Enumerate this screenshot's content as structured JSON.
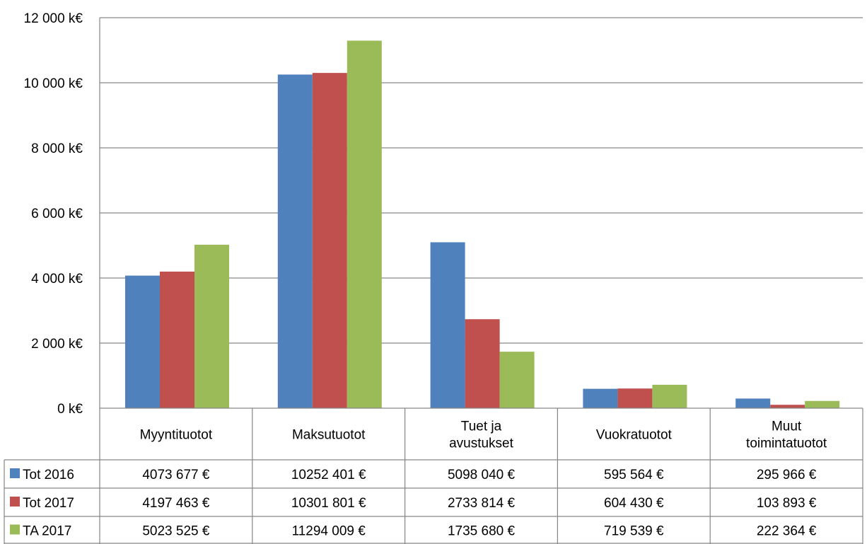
{
  "chart_data": {
    "type": "bar",
    "categories": [
      [
        "Myyntituotot"
      ],
      [
        "Maksutuotot"
      ],
      [
        "Tuet ja",
        "avustukset"
      ],
      [
        "Vuokratuotot"
      ],
      [
        "Muut",
        "toimintatuotot"
      ]
    ],
    "series": [
      {
        "name": "Tot 2016",
        "color": "#4f81bd",
        "values": [
          4073.677,
          10252.401,
          5098.04,
          595.564,
          295.966
        ],
        "labels": [
          "4073 677 €",
          "10252 401 €",
          "5098 040 €",
          "595 564 €",
          "295 966 €"
        ]
      },
      {
        "name": "Tot 2017",
        "color": "#c0504d",
        "values": [
          4197.463,
          10301.801,
          2733.814,
          604.43,
          103.893
        ],
        "labels": [
          "4197 463 €",
          "10301 801 €",
          "2733 814 €",
          "604 430 €",
          "103 893 €"
        ]
      },
      {
        "name": "TA 2017",
        "color": "#9bbb59",
        "values": [
          5023.525,
          11294.009,
          1735.68,
          719.539,
          222.364
        ],
        "labels": [
          "5023 525 €",
          "11294 009 €",
          "1735 680 €",
          "719 539 €",
          "222 364 €"
        ]
      }
    ],
    "yticks": [
      "0 k€",
      "2 000 k€",
      "4 000 k€",
      "6 000 k€",
      "8 000 k€",
      "10 000 k€",
      "12 000 k€"
    ],
    "ylim": [
      0,
      12000
    ],
    "ytick_step": 2000,
    "grid": true,
    "legend": "data-table"
  }
}
